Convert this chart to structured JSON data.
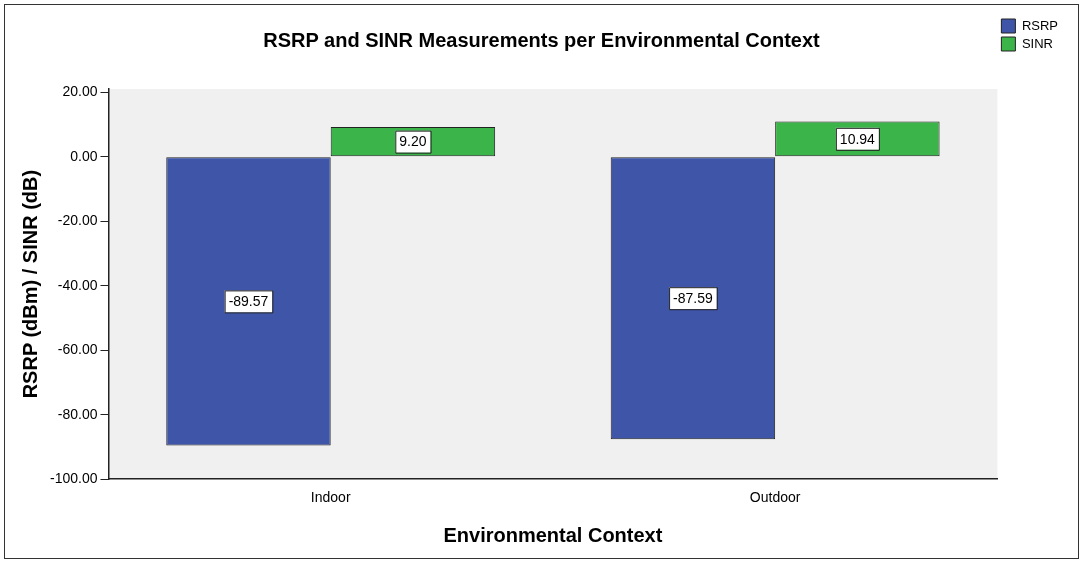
{
  "chart_data": {
    "type": "bar",
    "title": "RSRP and SINR Measurements per Environmental Context",
    "xlabel": "Environmental Context",
    "ylabel": "RSRP (dBm) / SINR (dB)",
    "categories": [
      "Indoor",
      "Outdoor"
    ],
    "series": [
      {
        "name": "RSRP",
        "color": "#3f56a8",
        "values": [
          -89.57,
          -87.59
        ],
        "value_labels": [
          "-89.57",
          "-87.59"
        ]
      },
      {
        "name": "SINR",
        "color": "#3bb54a",
        "values": [
          9.2,
          10.94
        ],
        "value_labels": [
          "9.20",
          "10.94"
        ]
      }
    ],
    "ylim": [
      -100,
      21
    ],
    "yticks": [
      {
        "value": 20,
        "label": "20.00"
      },
      {
        "value": 0,
        "label": "0.00"
      },
      {
        "value": -20,
        "label": "-20.00"
      },
      {
        "value": -40,
        "label": "-40.00"
      },
      {
        "value": -60,
        "label": "-60.00"
      },
      {
        "value": -80,
        "label": "-80.00"
      },
      {
        "value": -100,
        "label": "-100.00"
      }
    ],
    "grid": false,
    "legend": "top right"
  }
}
